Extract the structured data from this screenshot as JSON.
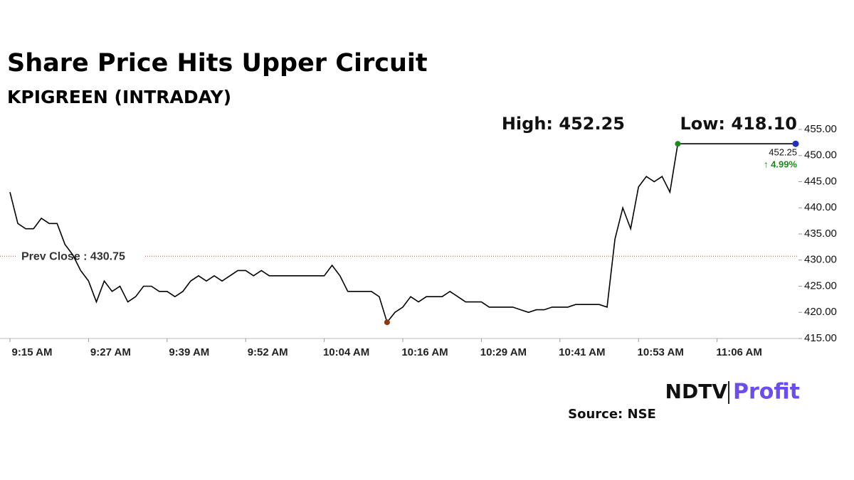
{
  "chart_data": {
    "type": "line",
    "title": "Share Price Hits Upper Circuit",
    "subtitle": "KPIGREEN (INTRADAY)",
    "categories": [
      "9:15 AM",
      null,
      null,
      null,
      null,
      null,
      null,
      null,
      null,
      null,
      "9:27 AM",
      null,
      null,
      null,
      null,
      null,
      null,
      null,
      null,
      null,
      "9:39 AM",
      null,
      null,
      null,
      null,
      null,
      null,
      null,
      null,
      null,
      "9:52 AM",
      null,
      null,
      null,
      null,
      null,
      null,
      null,
      null,
      null,
      "10:04 AM",
      null,
      null,
      null,
      null,
      null,
      null,
      null,
      null,
      null,
      "10:16 AM",
      null,
      null,
      null,
      null,
      null,
      null,
      null,
      null,
      null,
      "10:29 AM",
      null,
      null,
      null,
      null,
      null,
      null,
      null,
      null,
      null,
      "10:41 AM",
      null,
      null,
      null,
      null,
      null,
      null,
      null,
      null,
      null,
      "10:53 AM",
      null,
      null,
      null,
      null,
      null,
      null,
      null,
      null,
      null,
      "11:06 AM",
      null,
      null,
      null,
      null,
      null,
      null,
      null,
      null,
      null,
      null
    ],
    "series": [
      {
        "color": "#000000",
        "values": [
          443,
          437,
          436,
          436,
          438,
          437,
          437,
          433,
          431,
          428,
          426,
          422,
          426,
          424,
          425,
          422,
          423,
          425,
          425,
          424,
          424,
          423,
          424,
          426,
          427,
          426,
          427,
          426,
          427,
          428,
          428,
          427,
          428,
          427,
          427,
          427,
          427,
          427,
          427,
          427,
          427,
          429,
          427,
          424,
          424,
          424,
          424,
          423,
          418.1,
          420,
          421,
          423,
          422,
          423,
          423,
          423,
          424,
          423,
          422,
          422,
          422,
          421,
          421,
          421,
          421,
          420.5,
          420,
          420.5,
          420.5,
          421,
          421,
          421,
          421.5,
          421.5,
          421.5,
          421.5,
          421,
          434,
          440,
          436,
          444,
          446,
          445,
          446,
          443,
          452.25,
          452.25,
          452.25,
          452.25,
          452.25,
          452.25,
          452.25,
          452.25,
          452.25,
          452.25,
          452.25,
          452.25,
          452.25,
          452.25,
          452.25,
          452.25
        ]
      }
    ],
    "ylim": [
      415,
      455
    ],
    "yticks": [
      {
        "value": 415,
        "label": "415.00"
      },
      {
        "value": 420,
        "label": "420.00"
      },
      {
        "value": 425,
        "label": "425.00"
      },
      {
        "value": 430,
        "label": "430.00"
      },
      {
        "value": 435,
        "label": "435.00"
      },
      {
        "value": 440,
        "label": "440.00"
      },
      {
        "value": 445,
        "label": "445.00"
      },
      {
        "value": 450,
        "label": "450.00"
      },
      {
        "value": 455,
        "label": "455.00"
      }
    ],
    "prev_close": {
      "label": "Prev Close : 430.75",
      "value": 430.75,
      "color": "#a0522d"
    },
    "high": {
      "label": "High: 452.25",
      "value": 452.25,
      "color": "#1a8a1a"
    },
    "low": {
      "label": "Low: 418.10",
      "value": 418.1,
      "color": "#8b3a0f"
    },
    "last_label": "452.25",
    "change_label": "↑ 4.99%",
    "last_color": "#1f2fbf"
  },
  "brand": {
    "left": "NDTV",
    "right": "Profit"
  },
  "source": "Source: NSE"
}
